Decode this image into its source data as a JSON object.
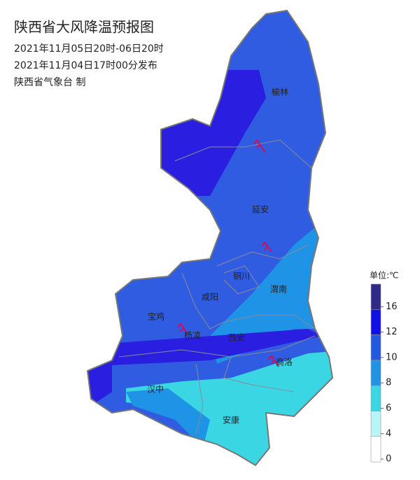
{
  "header": {
    "title": "陕西省大风降温预报图",
    "lines": [
      "2021年11月05日20时-06日20时",
      "2021年11月04日17时00分发布",
      "陕西省气象台 制"
    ]
  },
  "places": [
    "榆林",
    "延安",
    "铜川",
    "渭南",
    "咸阳",
    "宝鸡",
    "杨凌",
    "西安",
    "商洛",
    "汉中",
    "安康"
  ],
  "legend": {
    "title": "单位:℃",
    "ticks": [
      16,
      12,
      10,
      8,
      6,
      4,
      0
    ],
    "colors": [
      "#2e2a8a",
      "#1010e6",
      "#2259e0",
      "#1f93e6",
      "#3ad6e4",
      "#b7f5f7",
      "#ffffff"
    ]
  }
}
